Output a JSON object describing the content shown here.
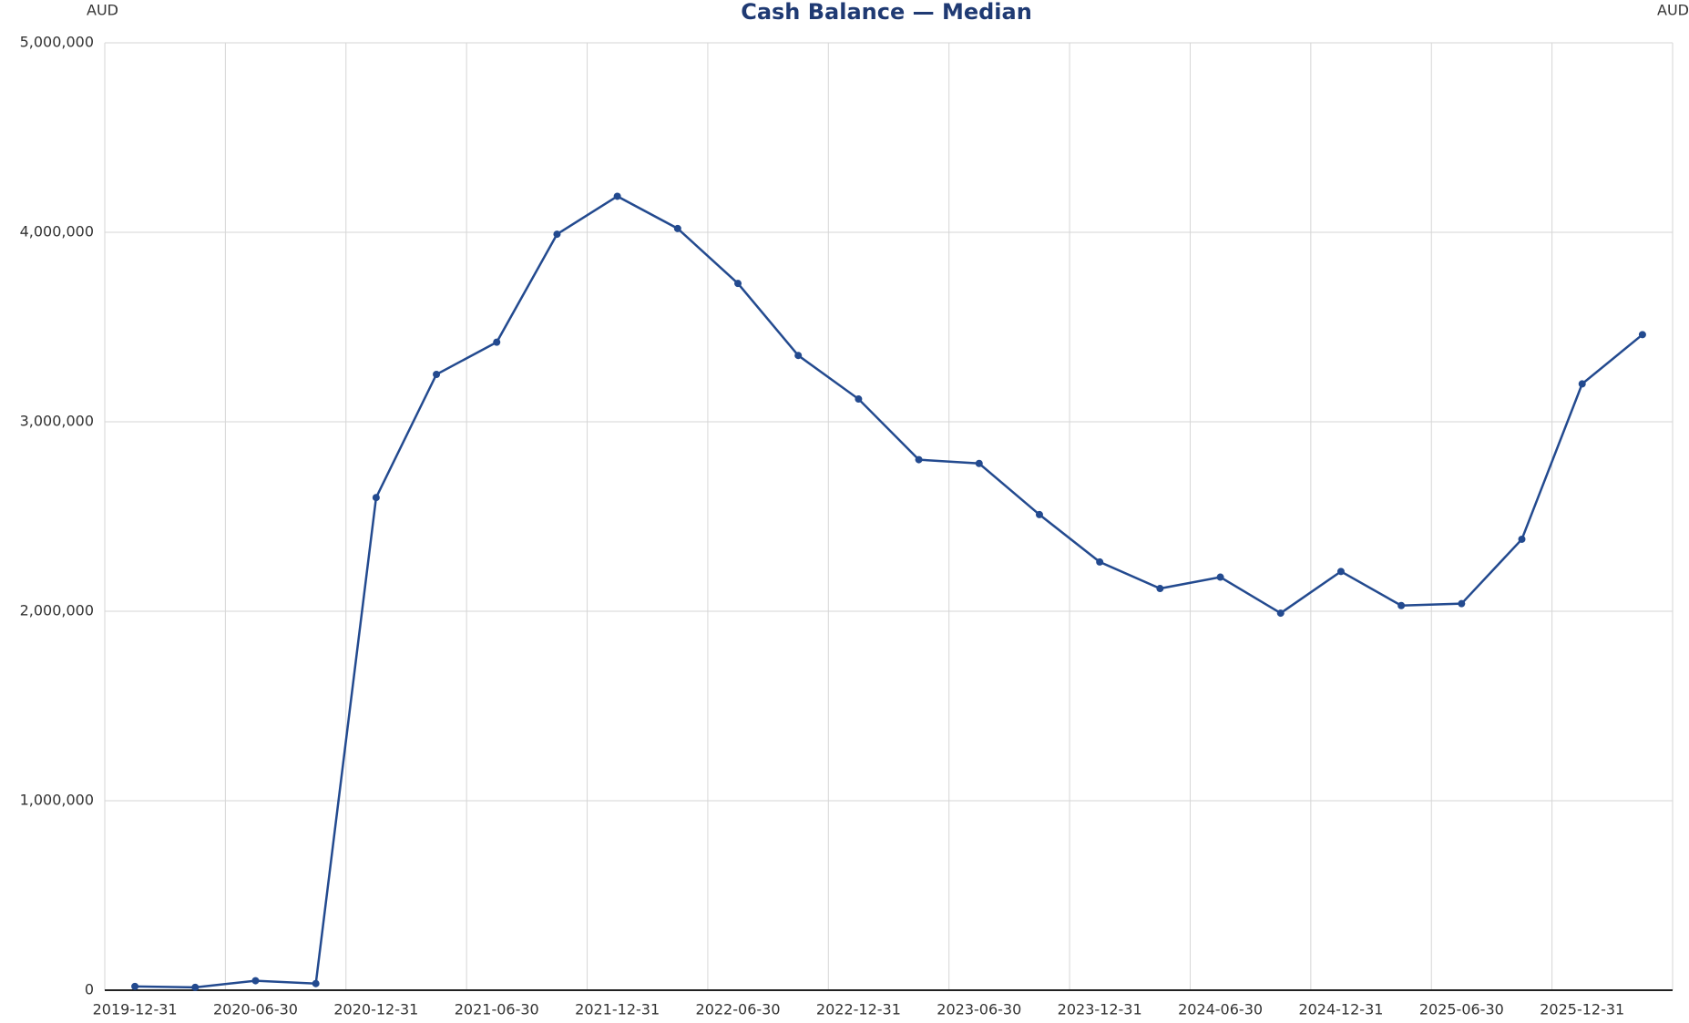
{
  "chart_data": {
    "type": "line",
    "title": "Cash Balance — Median",
    "ylabel": "AUD",
    "ylabel_right": "AUD",
    "categories": [
      "2019-12-31",
      null,
      "2020-06-30",
      null,
      "2020-12-31",
      null,
      "2021-06-30",
      null,
      "2021-12-31",
      null,
      "2022-06-30",
      null,
      "2022-12-31",
      null,
      "2023-06-30",
      null,
      "2023-12-31",
      null,
      "2024-06-30",
      null,
      "2024-12-31",
      null,
      "2025-06-30",
      null,
      "2025-12-31",
      null
    ],
    "series": [
      {
        "name": "Median",
        "color": "#234a8f",
        "values": [
          20000,
          15000,
          50000,
          35000,
          2600000,
          3250000,
          3420000,
          3990000,
          4190000,
          4020000,
          3730000,
          3350000,
          3120000,
          2800000,
          2780000,
          2510000,
          2260000,
          2120000,
          2180000,
          1990000,
          2210000,
          2030000,
          2040000,
          2380000,
          3200000,
          3460000
        ]
      }
    ],
    "ylim": [
      0,
      5000000
    ],
    "yticks": [
      0,
      {
        "value": 1000000,
        "label": "1,000,000"
      },
      {
        "value": 2000000,
        "label": "2,000,000"
      },
      {
        "value": 3000000,
        "label": "3,000,000"
      },
      {
        "value": 4000000,
        "label": "4,000,000"
      },
      {
        "value": 5000000,
        "label": "5,000,000"
      }
    ],
    "grid": true
  }
}
